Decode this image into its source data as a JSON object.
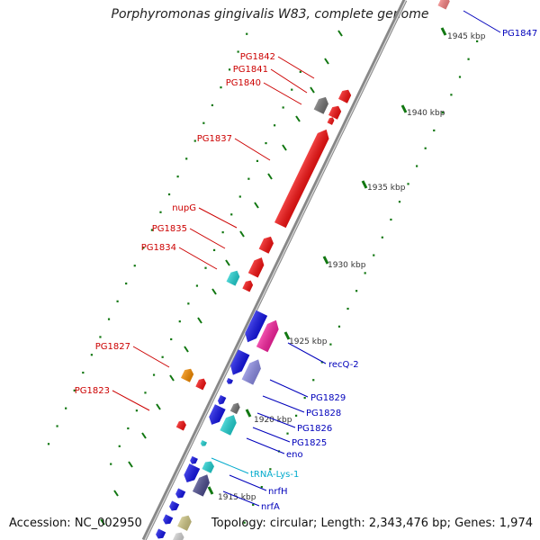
{
  "title": "Porphyromonas gingivalis W83, complete genome",
  "footer": {
    "accession": "Accession: NC_002950",
    "summary": "Topology: circular; Length: 2,343,476 bp; Genes: 1,974"
  },
  "scale_labels": [
    "1945 kbp",
    "1940 kbp",
    "1935 kbp",
    "1930 kbp",
    "1925 kbp",
    "1920 kbp",
    "1915 kbp"
  ],
  "colors": {
    "red": "#ee1111",
    "blue": "#1414e0",
    "cyan": "#22cccc",
    "pink": "#ee2299",
    "lavender": "#8888dd",
    "gray": "#707070",
    "orange": "#ee8800",
    "khaki": "#c8c080",
    "navy": "#4a4a8a",
    "light_red": "#f08080",
    "tick_green": "#117711",
    "label_red": "#cc0000",
    "label_blue": "#0000bb",
    "label_cyan": "#00aacc"
  },
  "labels_left": [
    "PG1842",
    "PG1841",
    "PG1840",
    "PG1837",
    "nupG",
    "PG1835",
    "PG1834",
    "PG1827",
    "PG1823"
  ],
  "labels_right": [
    "PG1847",
    "recQ-2",
    "PG1829",
    "PG1828",
    "PG1826",
    "PG1825",
    "eno",
    "tRNA-Lys-1",
    "nrfH",
    "nrfA"
  ]
}
